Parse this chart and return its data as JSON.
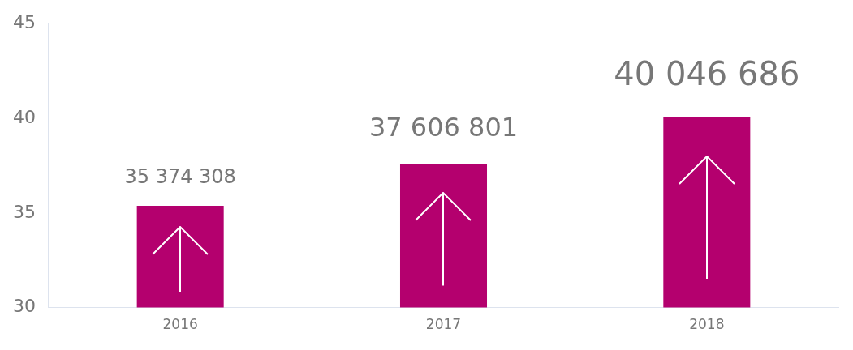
{
  "chart_data": {
    "type": "bar",
    "categories": [
      "2016",
      "2017",
      "2018"
    ],
    "values": [
      35.374308,
      37.606801,
      40.046686
    ],
    "annotations": [
      {
        "text": "35 374 308",
        "x": "2016",
        "y": 35.374308
      },
      {
        "text": "37 606 801",
        "x": "2017",
        "y": 37.606801
      },
      {
        "text": "40 046 686",
        "x": "2018",
        "y": 40.046686
      }
    ],
    "color": "#b4006e",
    "ylim": [
      30,
      45
    ],
    "yticks": [
      30,
      35,
      40,
      45
    ],
    "grid": false,
    "legend": false
  }
}
